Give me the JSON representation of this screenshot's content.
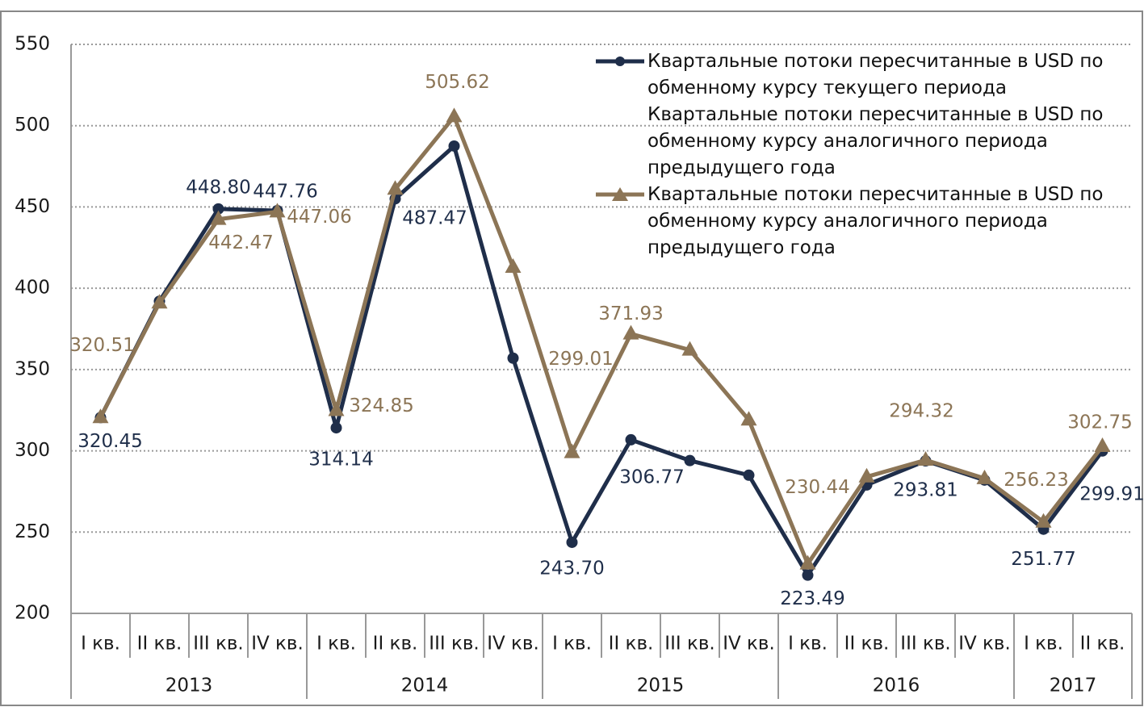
{
  "chart_data": {
    "type": "line",
    "categories": [
      "I кв.",
      "II кв.",
      "III кв.",
      "IV кв.",
      "I кв.",
      "II кв.",
      "III кв.",
      "IV кв.",
      "I кв.",
      "II кв.",
      "III кв.",
      "IV кв.",
      "I кв.",
      "II кв.",
      "III кв.",
      "IV кв.",
      "I кв.",
      "II кв."
    ],
    "year_groups": [
      "2013",
      "2014",
      "2015",
      "2016",
      "2017"
    ],
    "series": [
      {
        "name": "Квартальные потоки  пересчитанные в USD по обменному курсу текущего периода",
        "color": "#1f2e4a",
        "marker": "circle",
        "values": [
          320.45,
          392,
          448.8,
          447.76,
          314.14,
          455,
          487.47,
          357,
          243.7,
          306.77,
          294,
          285,
          223.49,
          279,
          293.81,
          282,
          251.77,
          299.91
        ],
        "value_labels": [
          "320.45",
          null,
          "448.80",
          "447.76",
          "314.14",
          null,
          "487.47",
          null,
          "243.70",
          "306.77",
          null,
          null,
          "223.49",
          null,
          "293.81",
          null,
          "251.77",
          "299.91"
        ]
      },
      {
        "name": "Квартальные потоки  пересчитанные в USD по обменному курсу аналогичного периода предыдущего года",
        "color": "#8c7556",
        "marker": "triangle",
        "values": [
          320.51,
          391,
          442.47,
          447.06,
          324.85,
          461,
          505.62,
          413,
          299.01,
          371.93,
          362,
          319,
          230.44,
          284,
          294.32,
          283,
          256.23,
          302.75
        ],
        "value_labels": [
          "320.51",
          null,
          "442.47",
          "447.06",
          "324.85",
          null,
          "505.62",
          null,
          "299.01",
          "371.93",
          null,
          null,
          "230.44",
          null,
          "294.32",
          null,
          "256.23",
          "302.75"
        ]
      }
    ],
    "legend_extra_entry": "Квартальные потоки  пересчитанные в USD по обменному курсу аналогичного периода предыдущего года",
    "ylim": [
      200,
      550
    ],
    "yticks": [
      200,
      250,
      300,
      350,
      400,
      450,
      500,
      550
    ],
    "grid": true
  }
}
